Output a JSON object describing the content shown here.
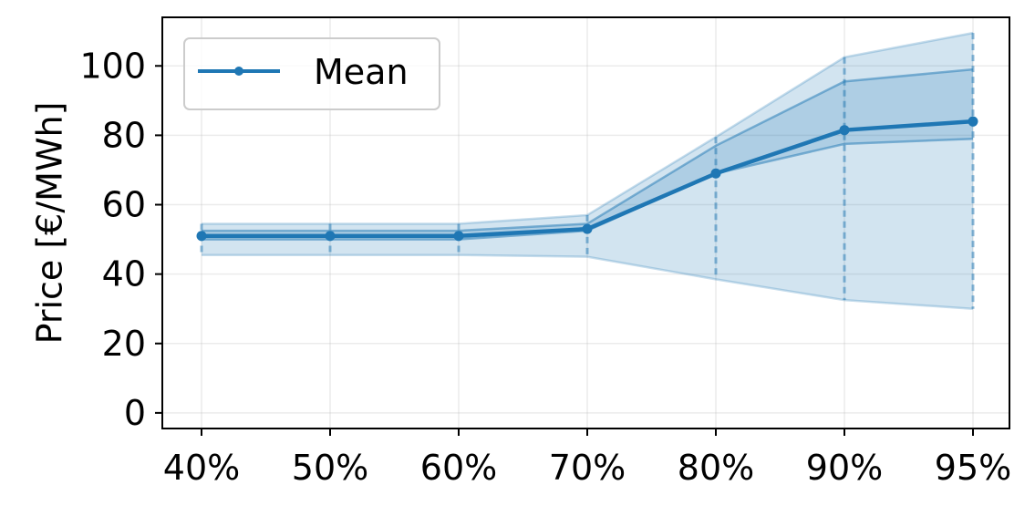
{
  "chart_data": {
    "type": "line",
    "categories": [
      "40%",
      "50%",
      "60%",
      "70%",
      "80%",
      "90%",
      "95%"
    ],
    "ylabel": "Price [€/MWh]",
    "xlabel": "",
    "ylim": [
      -4.5,
      114
    ],
    "yticks": [
      0,
      20,
      40,
      60,
      80,
      100
    ],
    "grid": true,
    "legend": {
      "position": "top-left",
      "entries": [
        "Mean"
      ]
    },
    "series": [
      {
        "name": "Mean",
        "color": "#1f77b4",
        "values": [
          51,
          51,
          51,
          53,
          69,
          81.5,
          84
        ]
      }
    ],
    "bands": [
      {
        "kind": "outer",
        "lower": [
          45.5,
          45.5,
          45.5,
          45,
          38.5,
          32.5,
          30
        ],
        "upper": [
          54.5,
          54.5,
          54.5,
          57,
          79.5,
          102.5,
          109.5
        ]
      },
      {
        "kind": "inner",
        "lower": [
          50,
          50,
          50,
          52.5,
          69,
          77.5,
          79
        ],
        "upper": [
          52.5,
          52.5,
          52.5,
          54.5,
          77,
          95.5,
          99
        ]
      }
    ]
  }
}
